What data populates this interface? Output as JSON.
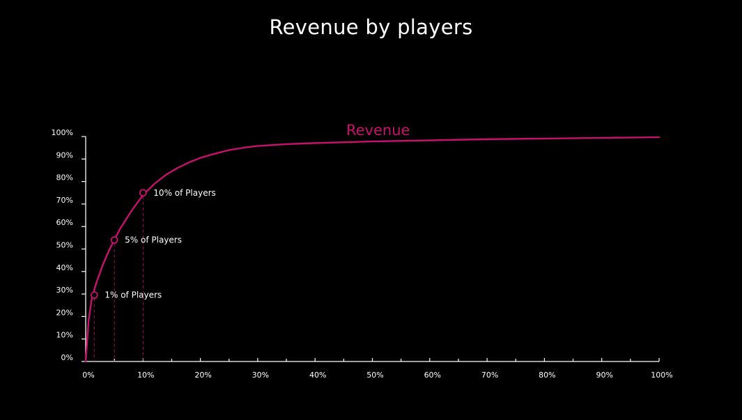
{
  "title": "Revenue by players",
  "colors": {
    "background": "#000000",
    "axis": "#ffffff",
    "text": "#ffffff",
    "series": "#c8106e"
  },
  "chart_data": {
    "type": "line",
    "title": "Revenue by players",
    "xlabel": "",
    "ylabel": "",
    "xlim": [
      0,
      100
    ],
    "ylim": [
      0,
      100
    ],
    "grid": false,
    "x_ticks": [
      "0%",
      "10%",
      "20%",
      "30%",
      "40%",
      "50%",
      "60%",
      "70%",
      "80%",
      "90%",
      "100%"
    ],
    "y_ticks": [
      "0%",
      "10%",
      "20%",
      "30%",
      "40%",
      "50%",
      "60%",
      "70%",
      "80%",
      "90%",
      "100%"
    ],
    "series": [
      {
        "name": "Revenue",
        "x": [
          0,
          0.5,
          1,
          1.5,
          2,
          3,
          4,
          5,
          6,
          7,
          8,
          10,
          12,
          14,
          16,
          18,
          20,
          22,
          25,
          28,
          30,
          35,
          40,
          50,
          60,
          70,
          80,
          90,
          100
        ],
        "y": [
          0,
          18,
          27,
          32,
          36,
          43,
          49,
          54,
          59,
          63,
          67,
          74,
          79,
          83,
          86,
          88.5,
          90.5,
          92,
          94,
          95.2,
          95.8,
          96.6,
          97.1,
          97.8,
          98.3,
          98.8,
          99.1,
          99.4,
          99.7
        ]
      }
    ],
    "annotations": [
      {
        "label": "1% of Players",
        "x": 1.5,
        "y": 29.5
      },
      {
        "label": "5% of Players",
        "x": 5,
        "y": 54
      },
      {
        "label": "10% of Players",
        "x": 10,
        "y": 75
      }
    ]
  }
}
